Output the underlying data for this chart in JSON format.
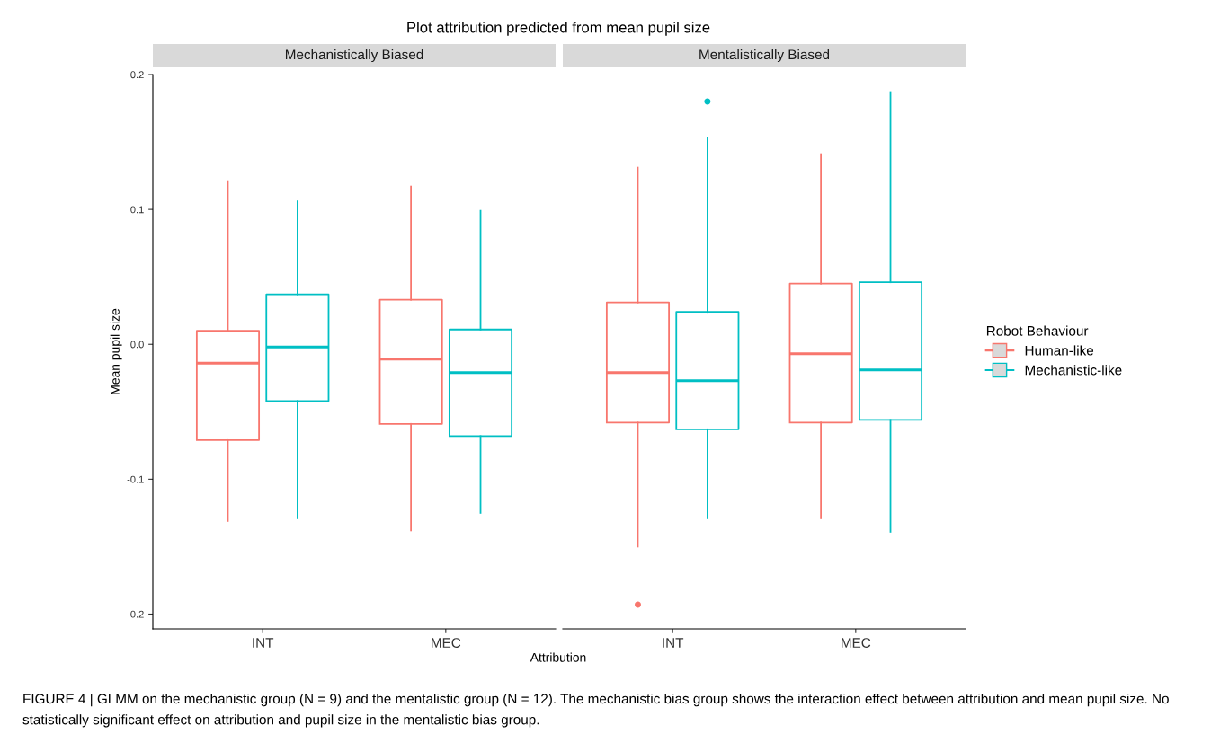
{
  "chart_data": [
    {
      "type": "box",
      "title": "Plot attribution predicted from mean pupil size",
      "subtitle": "Mechanistically Biased",
      "xlabel": "Attribution",
      "ylabel": "Mean pupil size",
      "categories": [
        "INT",
        "MEC"
      ],
      "ylim": [
        -0.211,
        0.2
      ],
      "yticks": [
        {
          "value": -0.2,
          "label": "-0.2"
        },
        {
          "value": -0.1,
          "label": "-0.1"
        },
        {
          "value": 0.0,
          "label": "0.0"
        },
        0.1,
        0.2
      ],
      "grid": false,
      "series": [
        {
          "color": "#f8766d",
          "boxes": [
            {
              "low": -0.131,
              "q1": -0.071,
              "median": -0.014,
              "q3": 0.01,
              "high": 0.121
            },
            {
              "low": -0.138,
              "q1": -0.059,
              "median": -0.011,
              "q3": 0.033,
              "high": 0.117
            }
          ]
        },
        {
          "color": "#00bfc4",
          "boxes": [
            {
              "low": -0.129,
              "q1": -0.042,
              "median": -0.002,
              "q3": 0.037,
              "high": 0.106
            },
            {
              "low": -0.125,
              "q1": -0.068,
              "median": -0.021,
              "q3": 0.011,
              "high": 0.099
            }
          ]
        }
      ],
      "annotations": [
        "FIGURE 4 | GLMM on the mechanistic group (N = 9) and the mentalistic group (N = 12). The mechanistic bias group shows the interaction effect between attribution and mean pupil size. No statistically significant effect on attribution and pupil size in the mentalistic bias group."
      ]
    },
    {
      "type": "box",
      "subtitle": "Mentalistically Biased",
      "categories": [
        "INT",
        "MEC"
      ],
      "ylim": [
        -0.211,
        0.2
      ],
      "tick_labels": "x",
      "grid": false,
      "legend": "right",
      "legend_title": "Robot Behaviour",
      "series": [
        {
          "name": "Human-like",
          "color": "#f8766d",
          "boxes": [
            {
              "low": -0.15,
              "q1": -0.058,
              "median": -0.021,
              "q3": 0.031,
              "high": 0.131,
              "outliers": [
                -0.193
              ]
            },
            {
              "low": -0.129,
              "q1": -0.058,
              "median": -0.007,
              "q3": 0.045,
              "high": 0.141
            }
          ]
        },
        {
          "name": "Mechanistic-like",
          "color": "#00bfc4",
          "boxes": [
            {
              "low": -0.129,
              "q1": -0.063,
              "median": -0.027,
              "q3": 0.024,
              "high": 0.153,
              "outliers": [
                0.18
              ]
            },
            {
              "low": -0.139,
              "q1": -0.056,
              "median": -0.019,
              "q3": 0.046,
              "high": 0.187
            }
          ]
        }
      ]
    }
  ]
}
